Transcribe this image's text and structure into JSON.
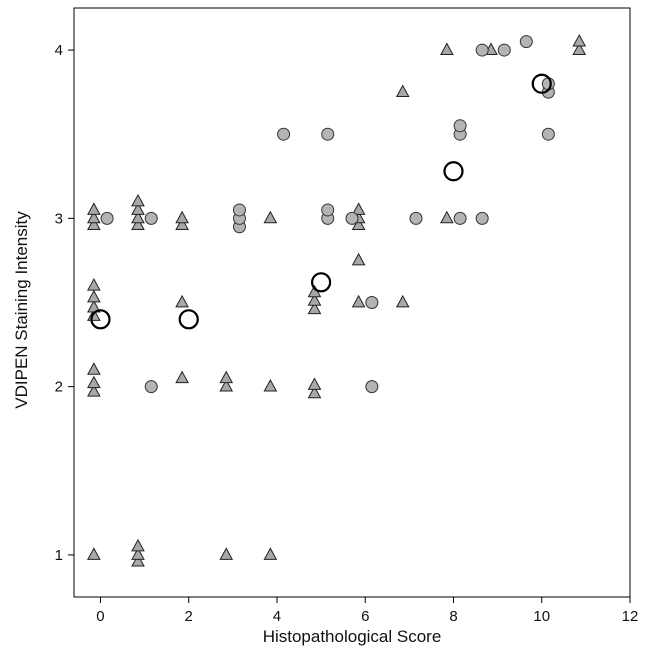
{
  "chart_data": {
    "type": "scatter",
    "title": "",
    "xlabel": "Histopathological Score",
    "ylabel": "VDIPEN Staining Intensity",
    "xlim": [
      -0.6,
      12
    ],
    "ylim": [
      0.75,
      4.25
    ],
    "xticks": [
      0,
      2,
      4,
      6,
      8,
      10,
      12
    ],
    "yticks": [
      1,
      2,
      3,
      4
    ],
    "grid": false,
    "legend": "none",
    "series": [
      {
        "marker": "triangle",
        "color": "#a8a8a8",
        "points": [
          [
            -0.15,
            1.0
          ],
          [
            -0.15,
            1.97
          ],
          [
            -0.15,
            2.02
          ],
          [
            -0.15,
            2.1
          ],
          [
            -0.15,
            2.42
          ],
          [
            -0.15,
            2.47
          ],
          [
            -0.15,
            2.53
          ],
          [
            -0.15,
            2.6
          ],
          [
            -0.15,
            2.96
          ],
          [
            -0.15,
            3.0
          ],
          [
            -0.15,
            3.05
          ],
          [
            0.85,
            0.96
          ],
          [
            0.85,
            1.0
          ],
          [
            0.85,
            1.05
          ],
          [
            0.85,
            2.96
          ],
          [
            0.85,
            3.0
          ],
          [
            0.85,
            3.05
          ],
          [
            0.85,
            3.1
          ],
          [
            1.85,
            2.05
          ],
          [
            1.85,
            2.5
          ],
          [
            1.85,
            2.96
          ],
          [
            1.85,
            3.0
          ],
          [
            2.85,
            1.0
          ],
          [
            2.85,
            2.0
          ],
          [
            2.85,
            2.05
          ],
          [
            3.85,
            1.0
          ],
          [
            3.85,
            2.0
          ],
          [
            3.85,
            3.0
          ],
          [
            4.85,
            1.96
          ],
          [
            4.85,
            2.01
          ],
          [
            4.85,
            2.46
          ],
          [
            4.85,
            2.51
          ],
          [
            4.85,
            2.56
          ],
          [
            5.85,
            2.5
          ],
          [
            5.85,
            2.75
          ],
          [
            5.85,
            2.96
          ],
          [
            5.85,
            3.0
          ],
          [
            5.85,
            3.05
          ],
          [
            6.85,
            2.5
          ],
          [
            6.85,
            3.75
          ],
          [
            7.85,
            3.0
          ],
          [
            7.85,
            4.0
          ],
          [
            8.85,
            4.0
          ],
          [
            10.85,
            4.0
          ],
          [
            10.85,
            4.05
          ]
        ]
      },
      {
        "marker": "circle",
        "color": "#b4b4b4",
        "points": [
          [
            0.15,
            3.0
          ],
          [
            1.15,
            2.0
          ],
          [
            1.15,
            3.0
          ],
          [
            3.15,
            2.95
          ],
          [
            3.15,
            3.0
          ],
          [
            3.15,
            3.05
          ],
          [
            4.15,
            3.5
          ],
          [
            5.15,
            3.0
          ],
          [
            5.15,
            3.05
          ],
          [
            5.15,
            3.5
          ],
          [
            5.7,
            3.0
          ],
          [
            6.15,
            2.0
          ],
          [
            6.15,
            2.5
          ],
          [
            7.15,
            3.0
          ],
          [
            8.15,
            3.0
          ],
          [
            8.15,
            3.5
          ],
          [
            8.15,
            3.55
          ],
          [
            8.65,
            3.0
          ],
          [
            8.65,
            4.0
          ],
          [
            9.15,
            4.0
          ],
          [
            9.65,
            4.05
          ],
          [
            10.15,
            3.5
          ],
          [
            10.15,
            3.75
          ],
          [
            10.15,
            3.8
          ]
        ]
      },
      {
        "marker": "open-circle",
        "color": "#000000",
        "points": [
          [
            0.0,
            2.4
          ],
          [
            2.0,
            2.4
          ],
          [
            5.0,
            2.62
          ],
          [
            8.0,
            3.28
          ],
          [
            10.0,
            3.8
          ]
        ]
      }
    ]
  }
}
